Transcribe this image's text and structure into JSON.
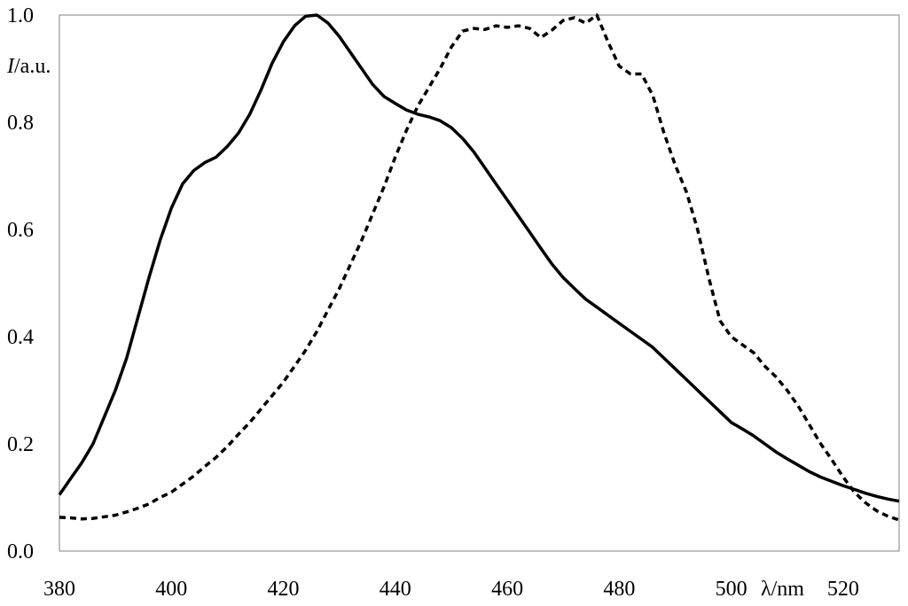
{
  "chart_data": {
    "type": "line",
    "title": "",
    "xlabel": "λ/nm",
    "ylabel_italic": "I",
    "ylabel_rest": "/a.u.",
    "xlim": [
      380,
      530
    ],
    "ylim": [
      0,
      1.0
    ],
    "x_ticks": [
      380,
      400,
      420,
      440,
      460,
      480,
      500,
      520
    ],
    "x_tick_labels": [
      "380",
      "400",
      "420",
      "440",
      "460",
      "480",
      "500",
      "520"
    ],
    "y_ticks": [
      0,
      0.2,
      0.4,
      0.6,
      0.8,
      1.0
    ],
    "y_tick_labels": [
      "0.0",
      "0.2",
      "0.4",
      "0.6",
      "0.8",
      "1.0"
    ],
    "grid": false,
    "legend": "none",
    "series": [
      {
        "style": "solid",
        "color": "#000000",
        "x": [
          380,
          382,
          384,
          386,
          388,
          390,
          392,
          394,
          396,
          398,
          400,
          402,
          404,
          406,
          408,
          410,
          412,
          414,
          416,
          418,
          420,
          422,
          424,
          426,
          428,
          430,
          432,
          434,
          436,
          438,
          440,
          442,
          444,
          446,
          448,
          450,
          452,
          454,
          456,
          458,
          460,
          462,
          464,
          466,
          468,
          470,
          472,
          474,
          476,
          478,
          480,
          482,
          484,
          486,
          488,
          490,
          492,
          494,
          496,
          498,
          500,
          502,
          504,
          506,
          508,
          510,
          512,
          514,
          516,
          518,
          520,
          522,
          524,
          526,
          528,
          530
        ],
        "y": [
          0.105,
          0.135,
          0.165,
          0.2,
          0.25,
          0.3,
          0.36,
          0.435,
          0.51,
          0.58,
          0.64,
          0.685,
          0.71,
          0.725,
          0.735,
          0.755,
          0.78,
          0.815,
          0.86,
          0.91,
          0.95,
          0.98,
          0.998,
          1.0,
          0.985,
          0.96,
          0.93,
          0.9,
          0.87,
          0.848,
          0.835,
          0.823,
          0.815,
          0.81,
          0.803,
          0.79,
          0.77,
          0.745,
          0.715,
          0.685,
          0.655,
          0.625,
          0.595,
          0.565,
          0.535,
          0.51,
          0.49,
          0.47,
          0.455,
          0.44,
          0.425,
          0.41,
          0.395,
          0.38,
          0.36,
          0.34,
          0.32,
          0.3,
          0.28,
          0.26,
          0.24,
          0.228,
          0.215,
          0.2,
          0.185,
          0.172,
          0.16,
          0.148,
          0.138,
          0.13,
          0.122,
          0.115,
          0.108,
          0.102,
          0.097,
          0.093
        ]
      },
      {
        "style": "dashed",
        "color": "#000000",
        "x": [
          380,
          382,
          384,
          386,
          388,
          390,
          392,
          394,
          396,
          398,
          400,
          402,
          404,
          406,
          408,
          410,
          412,
          414,
          416,
          418,
          420,
          422,
          424,
          426,
          428,
          430,
          432,
          434,
          436,
          438,
          440,
          442,
          444,
          446,
          448,
          450,
          452,
          454,
          456,
          458,
          460,
          462,
          464,
          466,
          468,
          470,
          472,
          474,
          476,
          478,
          480,
          482,
          484,
          486,
          488,
          490,
          492,
          494,
          496,
          498,
          500,
          502,
          504,
          506,
          508,
          510,
          512,
          514,
          516,
          518,
          520,
          522,
          524,
          526,
          528,
          530
        ],
        "y": [
          0.063,
          0.062,
          0.06,
          0.061,
          0.064,
          0.067,
          0.073,
          0.08,
          0.088,
          0.1,
          0.11,
          0.125,
          0.14,
          0.158,
          0.175,
          0.195,
          0.218,
          0.24,
          0.265,
          0.29,
          0.315,
          0.345,
          0.375,
          0.41,
          0.45,
          0.49,
          0.535,
          0.58,
          0.63,
          0.68,
          0.735,
          0.785,
          0.83,
          0.865,
          0.9,
          0.94,
          0.97,
          0.975,
          0.973,
          0.98,
          0.977,
          0.98,
          0.975,
          0.958,
          0.972,
          0.99,
          0.995,
          0.985,
          1.0,
          0.95,
          0.905,
          0.89,
          0.89,
          0.85,
          0.78,
          0.72,
          0.67,
          0.6,
          0.51,
          0.43,
          0.4,
          0.385,
          0.37,
          0.345,
          0.325,
          0.3,
          0.27,
          0.235,
          0.2,
          0.17,
          0.138,
          0.11,
          0.09,
          0.075,
          0.065,
          0.058
        ]
      }
    ]
  }
}
